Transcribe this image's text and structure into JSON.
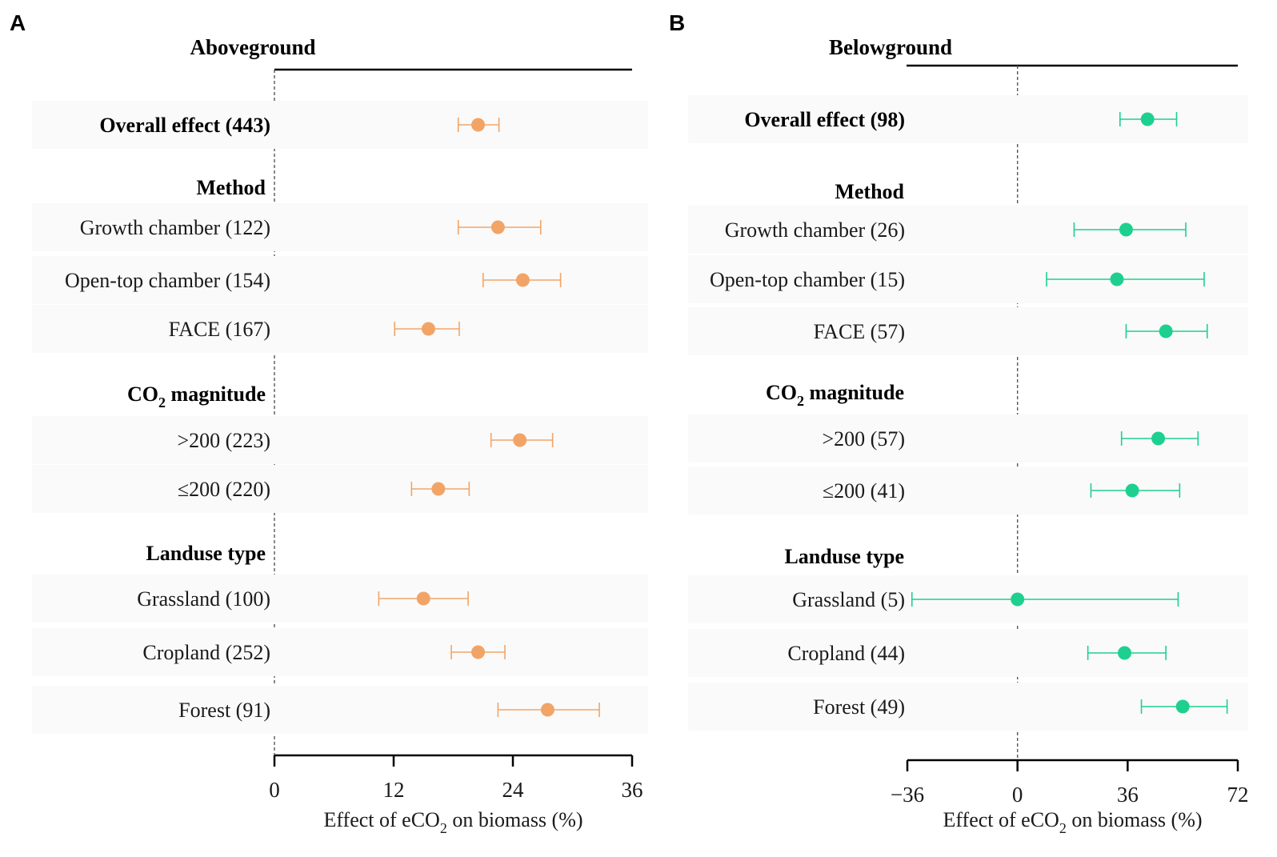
{
  "chart_data": [
    {
      "type": "forest",
      "panel": "A",
      "title": "Aboveground",
      "xlabel": "Effect of eCO2 on biomass (%)",
      "xlabel_parts": {
        "pre": "Effect of eCO",
        "sub": "2",
        "post": " on biomass (%)"
      },
      "xlim": [
        0,
        36
      ],
      "xticks": [
        0,
        12,
        24,
        36
      ],
      "tick_labels": [
        "0",
        "12",
        "24",
        "36"
      ],
      "reference_line": 0,
      "color": "#F2A467",
      "rows": [
        {
          "label": "Overall effect (443)",
          "bold": true,
          "mean": 20.5,
          "lo": 18.5,
          "hi": 22.6
        },
        {
          "label": "Method",
          "bold": true,
          "header": true
        },
        {
          "label": "Growth chamber (122)",
          "mean": 22.5,
          "lo": 18.5,
          "hi": 26.8
        },
        {
          "label": "Open-top chamber (154)",
          "mean": 25.0,
          "lo": 21.0,
          "hi": 28.8
        },
        {
          "label": "FACE (167)",
          "mean": 15.5,
          "lo": 12.1,
          "hi": 18.6
        },
        {
          "label": "CO",
          "label_sub": "2",
          "label_post": " magnitude",
          "bold": true,
          "header": true
        },
        {
          "label": ">200 (223)",
          "mean": 24.7,
          "lo": 21.8,
          "hi": 28.0
        },
        {
          "label": "≤200 (220)",
          "mean": 16.5,
          "lo": 13.8,
          "hi": 19.6
        },
        {
          "label": "Landuse type",
          "bold": true,
          "header": true
        },
        {
          "label": "Grassland (100)",
          "mean": 15.0,
          "lo": 10.5,
          "hi": 19.5
        },
        {
          "label": "Cropland (252)",
          "mean": 20.5,
          "lo": 17.8,
          "hi": 23.2
        },
        {
          "label": "Forest (91)",
          "mean": 27.5,
          "lo": 22.5,
          "hi": 32.7
        }
      ]
    },
    {
      "type": "forest",
      "panel": "B",
      "title": "Belowground",
      "xlabel": "Effect of eCO2 on biomass (%)",
      "xlabel_parts": {
        "pre": "Effect of eCO",
        "sub": "2",
        "post": " on biomass (%)"
      },
      "xlim": [
        -36,
        72
      ],
      "xticks": [
        -36,
        0,
        36,
        72
      ],
      "tick_labels": [
        "−36",
        "0",
        "36",
        "72"
      ],
      "reference_line": 0,
      "color": "#1ED08F",
      "rows": [
        {
          "label": "Overall effect (98)",
          "bold": true,
          "mean": 42.5,
          "lo": 33.5,
          "hi": 52.0
        },
        {
          "label": "Method",
          "bold": true,
          "header": true
        },
        {
          "label": "Growth chamber (26)",
          "mean": 35.5,
          "lo": 18.5,
          "hi": 55.0
        },
        {
          "label": "Open-top chamber (15)",
          "mean": 32.5,
          "lo": 9.5,
          "hi": 61.0
        },
        {
          "label": "FACE (57)",
          "mean": 48.5,
          "lo": 35.5,
          "hi": 62.0
        },
        {
          "label": "CO",
          "label_sub": "2",
          "label_post": " magnitude",
          "bold": true,
          "header": true
        },
        {
          "label": ">200 (57)",
          "mean": 46.0,
          "lo": 34.0,
          "hi": 59.0
        },
        {
          "label": "≤200 (41)",
          "mean": 37.5,
          "lo": 24.0,
          "hi": 53.0
        },
        {
          "label": "Landuse type",
          "bold": true,
          "header": true
        },
        {
          "label": "Grassland (5)",
          "mean": 0.0,
          "lo": -34.5,
          "hi": 52.5
        },
        {
          "label": "Cropland (44)",
          "mean": 35.0,
          "lo": 23.0,
          "hi": 48.5
        },
        {
          "label": "Forest (49)",
          "mean": 54.0,
          "lo": 40.5,
          "hi": 68.5
        }
      ]
    }
  ]
}
